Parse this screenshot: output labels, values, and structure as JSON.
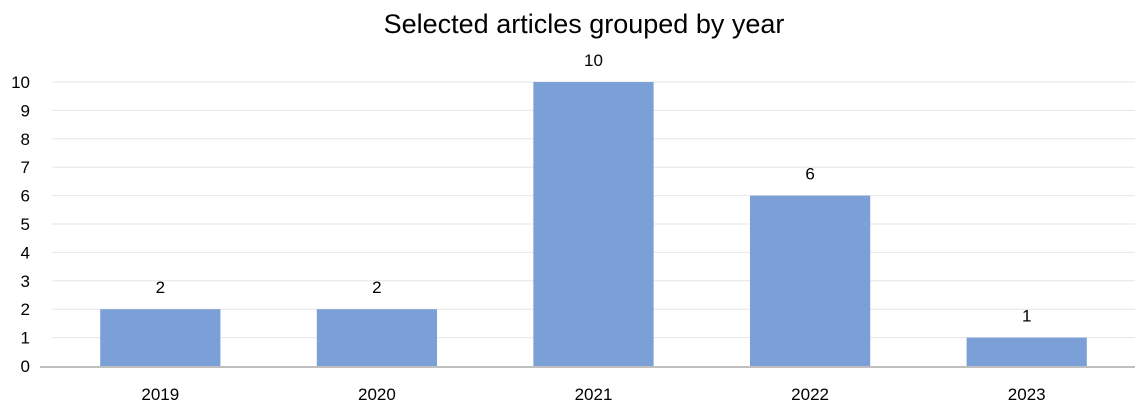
{
  "chart_data": {
    "type": "bar",
    "title": "Selected articles grouped by year",
    "xlabel": "",
    "ylabel": "",
    "categories": [
      "2019",
      "2020",
      "2021",
      "2022",
      "2023"
    ],
    "series": [
      {
        "values": [
          2,
          2,
          10,
          6,
          1
        ]
      }
    ],
    "ylim": [
      0,
      10
    ],
    "yticks": [
      0,
      1,
      2,
      3,
      4,
      5,
      6,
      7,
      8,
      9,
      10
    ],
    "grid": true,
    "legend": "none",
    "data_labels": true,
    "colors": {
      "bar": "#7b9fd7",
      "grid": "#e6e6e6",
      "axis": "#bfbfbf"
    }
  }
}
